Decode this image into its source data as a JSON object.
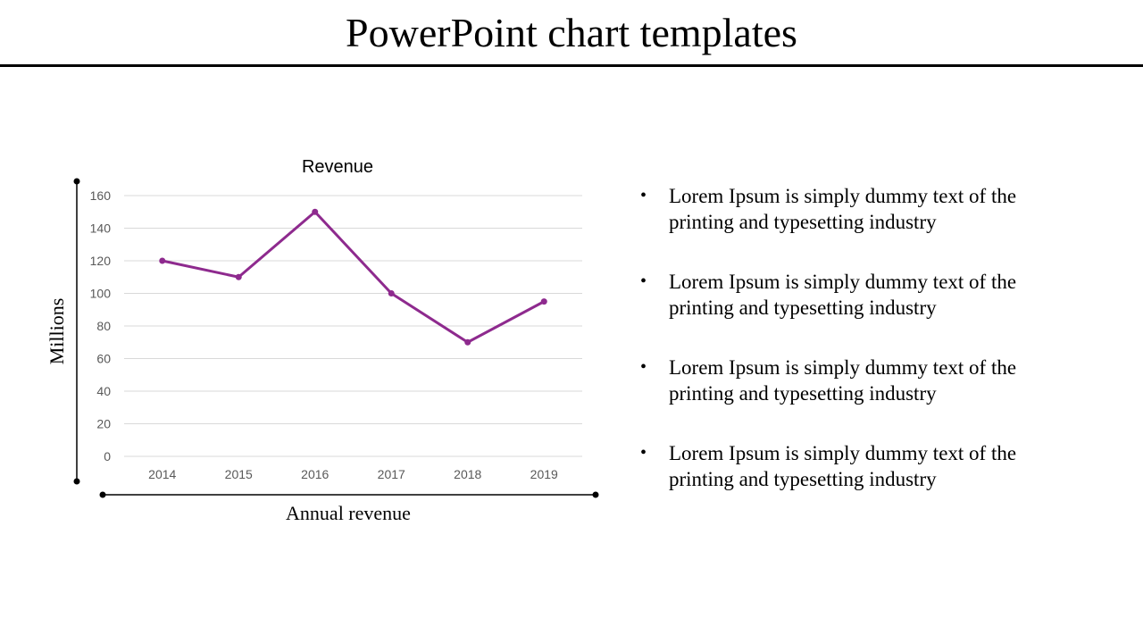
{
  "slide": {
    "title": "PowerPoint chart templates"
  },
  "chart_data": {
    "type": "line",
    "title": "Revenue",
    "xlabel": "Annual revenue",
    "ylabel": "Millions",
    "categories": [
      "2014",
      "2015",
      "2016",
      "2017",
      "2018",
      "2019"
    ],
    "series": [
      {
        "values": [
          120,
          110,
          150,
          100,
          70,
          95
        ]
      }
    ],
    "ylim": [
      0,
      160
    ],
    "yticks": [
      0,
      20,
      40,
      60,
      80,
      100,
      120,
      140,
      160
    ],
    "grid": true,
    "legend": "none",
    "colors": {
      "line": "#8e2a8e",
      "grid": "#d9d9d9",
      "tick_text": "#595959"
    }
  },
  "bullets": {
    "marker": "•",
    "items": [
      "Lorem Ipsum is simply dummy text of the printing and typesetting industry",
      "Lorem Ipsum is simply dummy text of the printing and typesetting industry",
      "Lorem Ipsum is simply dummy text of the printing and typesetting industry",
      "Lorem Ipsum is simply dummy text of the printing and typesetting industry"
    ]
  }
}
